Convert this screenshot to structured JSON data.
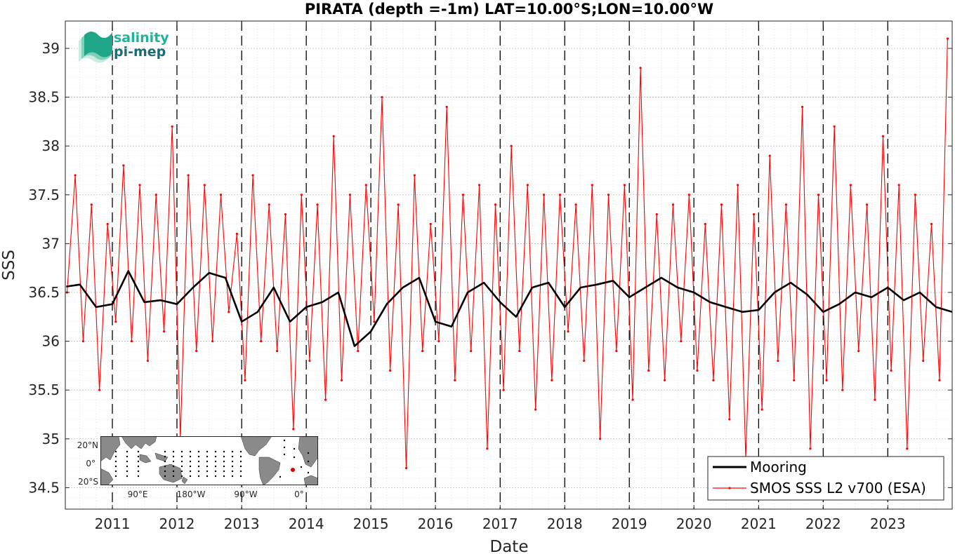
{
  "logo": {
    "line1": "salinity",
    "line2": "pi-mep"
  },
  "inset": {
    "lat_labels": [
      "20°N",
      "0°",
      "20°S"
    ],
    "lon_labels": [
      "90°E",
      "180°W",
      "90°W",
      "0°"
    ]
  },
  "colors": {
    "mooring": "#000000",
    "smos": "#ff0000",
    "grid": "#c8c8c8",
    "marker": "#e00000"
  },
  "chart_data": {
    "type": "line",
    "title": "PIRATA (depth =-1m) LAT=10.00°S;LON=10.00°W",
    "xlabel": "Date",
    "ylabel": "SSS",
    "xlim": [
      "2010-04-10",
      "2023-12-31"
    ],
    "ylim": [
      34.28,
      39.28
    ],
    "x_ticks": [
      "2011",
      "2012",
      "2013",
      "2014",
      "2015",
      "2016",
      "2017",
      "2018",
      "2019",
      "2020",
      "2021",
      "2022",
      "2023"
    ],
    "y_ticks": [
      "34.5",
      "35",
      "35.5",
      "36",
      "36.5",
      "37",
      "37.5",
      "38",
      "38.5",
      "39"
    ],
    "grid": true,
    "legend_position": "bottom-right",
    "year_separators": true,
    "series": [
      {
        "name": "Mooring",
        "color": "#000000",
        "x": [
          "2010-04-15",
          "2010-07-01",
          "2010-10-01",
          "2011-01-01",
          "2011-04-01",
          "2011-07-01",
          "2011-10-01",
          "2012-01-01",
          "2012-04-01",
          "2012-07-01",
          "2012-10-01",
          "2013-01-01",
          "2013-04-01",
          "2013-07-01",
          "2013-10-01",
          "2014-01-01",
          "2014-04-01",
          "2014-07-01",
          "2014-10-01",
          "2015-01-01",
          "2015-04-01",
          "2015-07-01",
          "2015-10-01",
          "2016-01-01",
          "2016-04-01",
          "2016-07-01",
          "2016-10-01",
          "2017-01-01",
          "2017-04-01",
          "2017-07-01",
          "2017-10-01",
          "2018-01-01",
          "2018-04-01",
          "2018-07-01",
          "2018-10-01",
          "2019-01-01",
          "2019-04-01",
          "2019-07-01",
          "2019-10-01",
          "2020-01-01",
          "2020-04-01",
          "2020-07-01",
          "2020-10-01",
          "2021-01-01",
          "2021-04-01",
          "2021-07-01",
          "2021-10-01",
          "2022-01-01",
          "2022-04-01",
          "2022-07-01",
          "2022-10-01",
          "2023-01-01",
          "2023-04-01",
          "2023-07-01",
          "2023-10-01",
          "2023-12-31"
        ],
        "values": [
          36.56,
          36.58,
          36.35,
          36.38,
          36.72,
          36.4,
          36.42,
          36.38,
          36.55,
          36.7,
          36.65,
          36.2,
          36.3,
          36.55,
          36.2,
          36.35,
          36.4,
          36.5,
          35.95,
          36.1,
          36.38,
          36.55,
          36.65,
          36.2,
          36.15,
          36.5,
          36.6,
          36.4,
          36.25,
          36.55,
          36.6,
          36.35,
          36.55,
          36.58,
          36.62,
          36.45,
          36.55,
          36.65,
          36.55,
          36.5,
          36.4,
          36.35,
          36.3,
          36.32,
          36.5,
          36.6,
          36.48,
          36.3,
          36.38,
          36.5,
          36.45,
          36.55,
          36.42,
          36.5,
          36.35,
          36.3
        ]
      },
      {
        "name": "SMOS SSS L2 v700 (ESA)",
        "color": "#ff0000",
        "x": [
          "2010-04-20",
          "2010-06-05",
          "2010-07-20",
          "2010-09-05",
          "2010-10-20",
          "2010-12-05",
          "2011-01-20",
          "2011-03-05",
          "2011-04-20",
          "2011-06-05",
          "2011-07-20",
          "2011-09-05",
          "2011-10-20",
          "2011-12-05",
          "2012-01-20",
          "2012-03-05",
          "2012-04-20",
          "2012-06-05",
          "2012-07-20",
          "2012-09-05",
          "2012-10-20",
          "2012-12-05",
          "2013-01-20",
          "2013-03-05",
          "2013-04-20",
          "2013-06-05",
          "2013-07-20",
          "2013-09-05",
          "2013-10-20",
          "2013-12-05",
          "2014-01-20",
          "2014-03-05",
          "2014-04-20",
          "2014-06-05",
          "2014-07-20",
          "2014-09-05",
          "2014-10-20",
          "2014-12-05",
          "2015-01-20",
          "2015-03-05",
          "2015-04-20",
          "2015-06-05",
          "2015-07-20",
          "2015-09-05",
          "2015-10-20",
          "2015-12-05",
          "2016-01-20",
          "2016-03-05",
          "2016-04-20",
          "2016-06-05",
          "2016-07-20",
          "2016-09-05",
          "2016-10-20",
          "2016-12-05",
          "2017-01-20",
          "2017-03-05",
          "2017-04-20",
          "2017-06-05",
          "2017-07-20",
          "2017-09-05",
          "2017-10-20",
          "2017-12-05",
          "2018-01-20",
          "2018-03-05",
          "2018-04-20",
          "2018-06-05",
          "2018-07-20",
          "2018-09-05",
          "2018-10-20",
          "2018-12-05",
          "2019-01-20",
          "2019-03-05",
          "2019-04-20",
          "2019-06-05",
          "2019-07-20",
          "2019-09-05",
          "2019-10-20",
          "2019-12-05",
          "2020-01-20",
          "2020-03-05",
          "2020-04-20",
          "2020-06-05",
          "2020-07-20",
          "2020-09-05",
          "2020-10-20",
          "2020-12-05",
          "2021-01-20",
          "2021-03-05",
          "2021-04-20",
          "2021-06-05",
          "2021-07-20",
          "2021-09-05",
          "2021-10-20",
          "2021-12-05",
          "2022-01-20",
          "2022-03-05",
          "2022-04-20",
          "2022-06-05",
          "2022-07-20",
          "2022-09-05",
          "2022-10-20",
          "2022-12-05",
          "2023-01-20",
          "2023-03-05",
          "2023-04-20",
          "2023-06-05",
          "2023-07-20",
          "2023-09-05",
          "2023-10-20",
          "2023-12-05"
        ],
        "values": [
          36.5,
          37.7,
          36.0,
          37.4,
          35.5,
          37.2,
          36.2,
          37.8,
          36.0,
          37.6,
          35.8,
          37.5,
          36.1,
          38.2,
          35.0,
          37.7,
          35.9,
          37.6,
          36.0,
          37.5,
          36.3,
          37.1,
          35.6,
          37.7,
          36.0,
          37.4,
          35.9,
          37.3,
          35.1,
          37.5,
          35.8,
          37.4,
          35.4,
          38.1,
          35.6,
          37.5,
          35.9,
          37.6,
          36.2,
          38.5,
          35.7,
          37.4,
          34.7,
          37.7,
          35.9,
          37.2,
          36.0,
          38.4,
          35.6,
          37.5,
          35.9,
          37.6,
          34.9,
          37.4,
          35.5,
          38.0,
          35.9,
          37.6,
          35.3,
          37.5,
          35.6,
          37.5,
          36.1,
          37.4,
          35.8,
          37.6,
          35.0,
          37.5,
          35.9,
          37.6,
          35.4,
          38.8,
          35.7,
          37.3,
          35.6,
          37.4,
          36.0,
          37.5,
          35.7,
          37.2,
          35.6,
          37.4,
          35.2,
          37.6,
          34.8,
          37.3,
          35.3,
          37.9,
          35.8,
          37.4,
          35.6,
          38.4,
          34.9,
          37.5,
          35.6,
          38.2,
          35.5,
          37.6,
          35.9,
          37.4,
          35.4,
          38.1,
          35.7,
          37.6,
          34.9,
          37.5,
          35.8,
          37.2,
          35.6,
          39.1
        ]
      }
    ]
  }
}
